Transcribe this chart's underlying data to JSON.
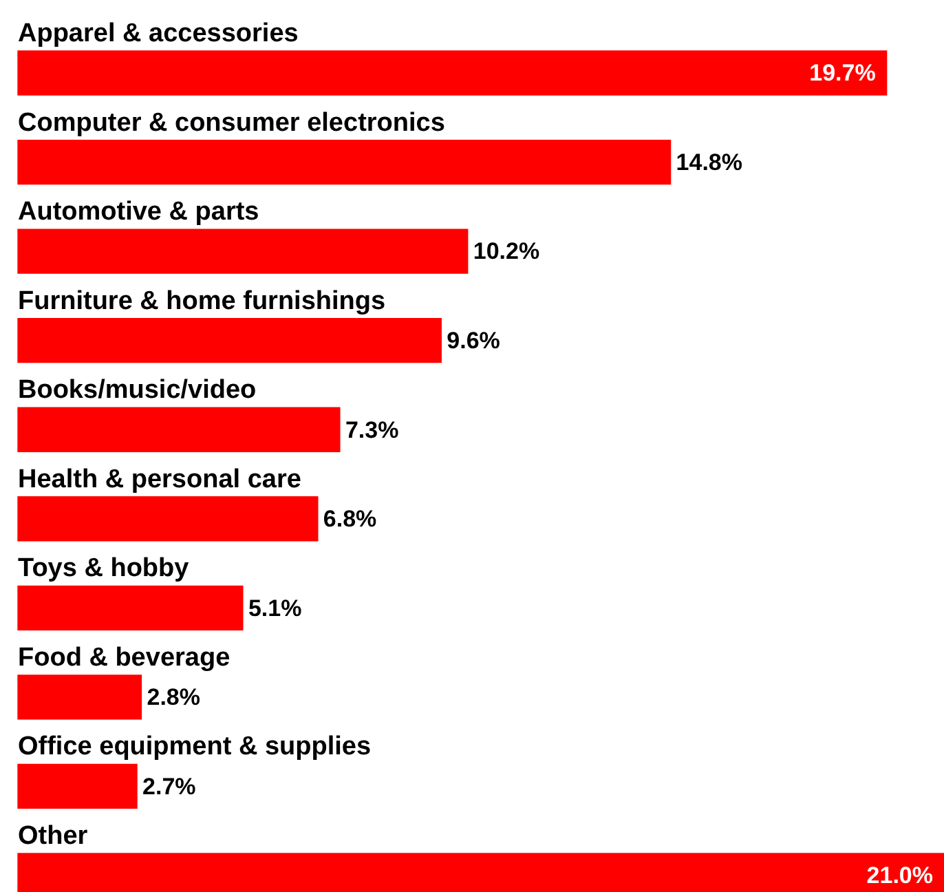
{
  "chart_data": {
    "type": "bar",
    "orientation": "horizontal",
    "categories": [
      "Apparel & accessories",
      "Computer & consumer electronics",
      "Automotive & parts",
      "Furniture & home furnishings",
      "Books/music/video",
      "Health & personal care",
      "Toys & hobby",
      "Food & beverage",
      "Office equipment & supplies",
      "Other"
    ],
    "values": [
      19.7,
      14.8,
      10.2,
      9.6,
      7.3,
      6.8,
      5.1,
      2.8,
      2.7,
      21.0
    ],
    "value_labels": [
      "19.7%",
      "14.8%",
      "10.2%",
      "9.6%",
      "7.3%",
      "6.8%",
      "5.1%",
      "2.8%",
      "2.7%",
      "21.0%"
    ],
    "color": "#ff0000"
  }
}
